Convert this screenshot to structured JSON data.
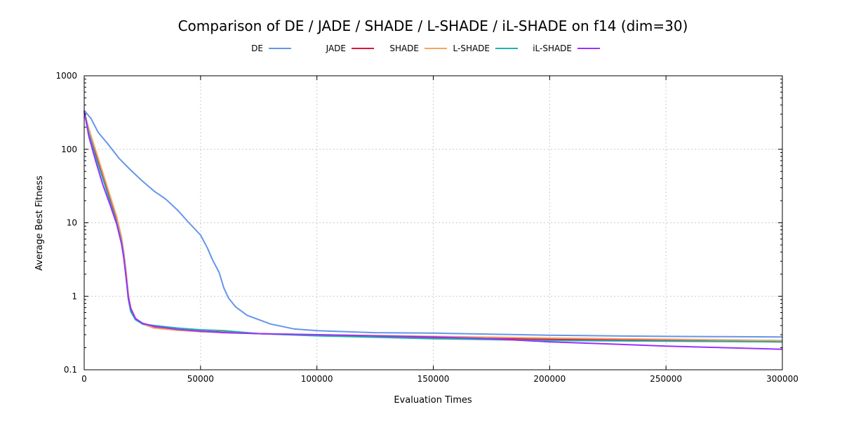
{
  "chart_data": {
    "type": "line",
    "title": "Comparison of DE / JADE / SHADE / L-SHADE / iL-SHADE on f14 (dim=30)",
    "xlabel": "Evaluation Times",
    "ylabel": "Average Best Fitness",
    "xlim": [
      0,
      300000
    ],
    "ylim": [
      0.1,
      1000
    ],
    "yscale": "log",
    "grid": true,
    "legend_position": "top",
    "x_ticks": [
      0,
      50000,
      100000,
      150000,
      200000,
      250000,
      300000
    ],
    "x_tick_labels": [
      "0",
      "50000",
      "100000",
      "150000",
      "200000",
      "250000",
      "300000"
    ],
    "y_ticks": [
      0.1,
      1,
      10,
      100,
      1000
    ],
    "y_tick_labels": [
      "0.1",
      "1",
      "10",
      "100",
      "1000"
    ],
    "series": [
      {
        "name": "DE",
        "color": "#6495ed",
        "points": [
          [
            0,
            340
          ],
          [
            3000,
            260
          ],
          [
            6000,
            170
          ],
          [
            10000,
            120
          ],
          [
            15000,
            75
          ],
          [
            20000,
            52
          ],
          [
            25000,
            37
          ],
          [
            30000,
            27
          ],
          [
            35000,
            21
          ],
          [
            40000,
            15
          ],
          [
            45000,
            10
          ],
          [
            50000,
            6.8
          ],
          [
            53000,
            4.5
          ],
          [
            55000,
            3.2
          ],
          [
            58000,
            2.1
          ],
          [
            60000,
            1.3
          ],
          [
            62000,
            0.95
          ],
          [
            65000,
            0.72
          ],
          [
            70000,
            0.55
          ],
          [
            80000,
            0.42
          ],
          [
            90000,
            0.36
          ],
          [
            100000,
            0.34
          ],
          [
            125000,
            0.32
          ],
          [
            150000,
            0.315
          ],
          [
            175000,
            0.305
          ],
          [
            200000,
            0.295
          ],
          [
            225000,
            0.29
          ],
          [
            250000,
            0.285
          ],
          [
            275000,
            0.282
          ],
          [
            300000,
            0.28
          ]
        ]
      },
      {
        "name": "JADE",
        "color": "#dc143c",
        "points": [
          [
            0,
            330
          ],
          [
            2000,
            180
          ],
          [
            5000,
            85
          ],
          [
            8000,
            42
          ],
          [
            11000,
            22
          ],
          [
            14000,
            11
          ],
          [
            16000,
            6
          ],
          [
            17000,
            3.8
          ],
          [
            18000,
            2.1
          ],
          [
            19000,
            1.0
          ],
          [
            20000,
            0.7
          ],
          [
            22000,
            0.5
          ],
          [
            25000,
            0.42
          ],
          [
            30000,
            0.38
          ],
          [
            40000,
            0.35
          ],
          [
            50000,
            0.335
          ],
          [
            75000,
            0.31
          ],
          [
            100000,
            0.295
          ],
          [
            150000,
            0.275
          ],
          [
            200000,
            0.26
          ],
          [
            250000,
            0.25
          ],
          [
            300000,
            0.24
          ]
        ]
      },
      {
        "name": "SHADE",
        "color": "#f4a460",
        "points": [
          [
            0,
            330
          ],
          [
            2000,
            190
          ],
          [
            5000,
            95
          ],
          [
            8000,
            48
          ],
          [
            11000,
            24
          ],
          [
            14000,
            12
          ],
          [
            16000,
            6.5
          ],
          [
            17000,
            4
          ],
          [
            18000,
            2.2
          ],
          [
            19000,
            1.05
          ],
          [
            20000,
            0.7
          ],
          [
            22000,
            0.5
          ],
          [
            25000,
            0.42
          ],
          [
            30000,
            0.37
          ],
          [
            40000,
            0.345
          ],
          [
            50000,
            0.33
          ],
          [
            75000,
            0.31
          ],
          [
            100000,
            0.3
          ],
          [
            150000,
            0.285
          ],
          [
            200000,
            0.27
          ],
          [
            250000,
            0.26
          ],
          [
            300000,
            0.25
          ]
        ]
      },
      {
        "name": "L-SHADE",
        "color": "#20b2aa",
        "points": [
          [
            0,
            330
          ],
          [
            2000,
            165
          ],
          [
            5000,
            78
          ],
          [
            8000,
            40
          ],
          [
            11000,
            20
          ],
          [
            14000,
            10
          ],
          [
            16000,
            5.5
          ],
          [
            17000,
            3.5
          ],
          [
            18000,
            1.8
          ],
          [
            19000,
            0.9
          ],
          [
            20000,
            0.62
          ],
          [
            22000,
            0.48
          ],
          [
            25000,
            0.42
          ],
          [
            30000,
            0.4
          ],
          [
            40000,
            0.37
          ],
          [
            50000,
            0.35
          ],
          [
            60000,
            0.34
          ],
          [
            75000,
            0.31
          ],
          [
            100000,
            0.29
          ],
          [
            150000,
            0.265
          ],
          [
            200000,
            0.25
          ],
          [
            250000,
            0.245
          ],
          [
            300000,
            0.24
          ]
        ]
      },
      {
        "name": "iL-SHADE",
        "color": "#9b30ff",
        "points": [
          [
            0,
            330
          ],
          [
            2000,
            150
          ],
          [
            5000,
            68
          ],
          [
            8000,
            33
          ],
          [
            11000,
            18
          ],
          [
            14000,
            9.5
          ],
          [
            16000,
            5.2
          ],
          [
            17000,
            3.3
          ],
          [
            18000,
            1.8
          ],
          [
            19000,
            0.95
          ],
          [
            20000,
            0.68
          ],
          [
            22000,
            0.5
          ],
          [
            25000,
            0.43
          ],
          [
            30000,
            0.39
          ],
          [
            40000,
            0.355
          ],
          [
            50000,
            0.335
          ],
          [
            60000,
            0.32
          ],
          [
            75000,
            0.31
          ],
          [
            100000,
            0.3
          ],
          [
            150000,
            0.28
          ],
          [
            175000,
            0.265
          ],
          [
            200000,
            0.24
          ],
          [
            225000,
            0.225
          ],
          [
            250000,
            0.21
          ],
          [
            275000,
            0.2
          ],
          [
            300000,
            0.19
          ]
        ]
      }
    ]
  }
}
